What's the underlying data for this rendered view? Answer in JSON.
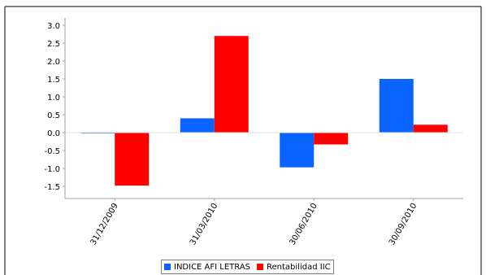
{
  "chart_data": {
    "type": "bar",
    "categories": [
      "31/12/2009",
      "31/03/2010",
      "30/06/2010",
      "30/09/2010"
    ],
    "series": [
      {
        "name": "INDICE AFI LETRAS",
        "color": "#0a64ff",
        "values": [
          -0.02,
          0.4,
          -0.97,
          1.5
        ]
      },
      {
        "name": "Rentabilidad IIC",
        "color": "#ff0000",
        "values": [
          -1.48,
          2.7,
          -0.33,
          0.22
        ]
      }
    ],
    "ylim": [
      -1.75,
      3.0
    ],
    "yticks": [
      3.0,
      2.5,
      2.0,
      1.5,
      1.0,
      0.5,
      0.0,
      -0.5,
      -1.0,
      -1.5
    ],
    "ytick_labels": [
      "3.0",
      "2.5",
      "2.0",
      "1.5",
      "1.0",
      "0.5",
      "0.0",
      "-0.5",
      "-1.0",
      "-1.5"
    ],
    "grid": false,
    "legend_position": "bottom-center"
  }
}
